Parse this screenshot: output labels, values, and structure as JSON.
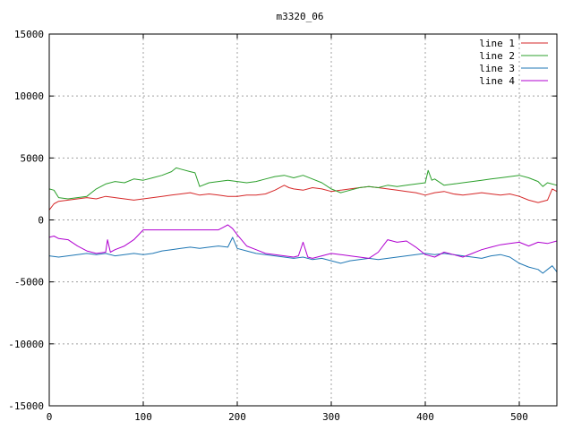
{
  "chart_data": {
    "type": "line",
    "title": "m3320_06",
    "xlabel": "",
    "ylabel": "",
    "xlim": [
      0,
      540
    ],
    "ylim": [
      -15000,
      15000
    ],
    "xticks": [
      0,
      100,
      200,
      300,
      400,
      500
    ],
    "yticks": [
      -15000,
      -10000,
      -5000,
      0,
      5000,
      10000,
      15000
    ],
    "grid": true,
    "legend_position": "top-right",
    "series": [
      {
        "name": "line 1",
        "color": "#d62728",
        "points": [
          [
            0,
            800
          ],
          [
            5,
            1300
          ],
          [
            10,
            1500
          ],
          [
            20,
            1600
          ],
          [
            30,
            1700
          ],
          [
            40,
            1800
          ],
          [
            50,
            1700
          ],
          [
            60,
            1900
          ],
          [
            70,
            1800
          ],
          [
            80,
            1700
          ],
          [
            90,
            1600
          ],
          [
            100,
            1700
          ],
          [
            110,
            1800
          ],
          [
            120,
            1900
          ],
          [
            130,
            2000
          ],
          [
            140,
            2100
          ],
          [
            150,
            2200
          ],
          [
            160,
            2000
          ],
          [
            170,
            2100
          ],
          [
            180,
            2000
          ],
          [
            190,
            1900
          ],
          [
            200,
            1900
          ],
          [
            210,
            2000
          ],
          [
            220,
            2000
          ],
          [
            230,
            2100
          ],
          [
            240,
            2400
          ],
          [
            250,
            2800
          ],
          [
            255,
            2600
          ],
          [
            260,
            2500
          ],
          [
            270,
            2400
          ],
          [
            280,
            2600
          ],
          [
            290,
            2500
          ],
          [
            300,
            2300
          ],
          [
            310,
            2400
          ],
          [
            320,
            2500
          ],
          [
            330,
            2600
          ],
          [
            340,
            2700
          ],
          [
            350,
            2600
          ],
          [
            360,
            2500
          ],
          [
            370,
            2400
          ],
          [
            380,
            2300
          ],
          [
            390,
            2200
          ],
          [
            400,
            2000
          ],
          [
            410,
            2200
          ],
          [
            420,
            2300
          ],
          [
            430,
            2100
          ],
          [
            440,
            2000
          ],
          [
            450,
            2100
          ],
          [
            460,
            2200
          ],
          [
            470,
            2100
          ],
          [
            480,
            2000
          ],
          [
            490,
            2100
          ],
          [
            500,
            1900
          ],
          [
            510,
            1600
          ],
          [
            520,
            1400
          ],
          [
            530,
            1600
          ],
          [
            535,
            2500
          ],
          [
            540,
            2300
          ]
        ]
      },
      {
        "name": "line 2",
        "color": "#2ca02c",
        "points": [
          [
            0,
            2500
          ],
          [
            5,
            2400
          ],
          [
            10,
            1800
          ],
          [
            20,
            1700
          ],
          [
            30,
            1800
          ],
          [
            40,
            1900
          ],
          [
            50,
            2500
          ],
          [
            60,
            2900
          ],
          [
            70,
            3100
          ],
          [
            80,
            3000
          ],
          [
            90,
            3300
          ],
          [
            100,
            3200
          ],
          [
            110,
            3400
          ],
          [
            120,
            3600
          ],
          [
            130,
            3900
          ],
          [
            135,
            4200
          ],
          [
            140,
            4100
          ],
          [
            150,
            3900
          ],
          [
            155,
            3800
          ],
          [
            160,
            2700
          ],
          [
            170,
            3000
          ],
          [
            180,
            3100
          ],
          [
            190,
            3200
          ],
          [
            200,
            3100
          ],
          [
            210,
            3000
          ],
          [
            220,
            3100
          ],
          [
            230,
            3300
          ],
          [
            240,
            3500
          ],
          [
            250,
            3600
          ],
          [
            260,
            3400
          ],
          [
            270,
            3600
          ],
          [
            280,
            3300
          ],
          [
            290,
            3000
          ],
          [
            300,
            2500
          ],
          [
            310,
            2200
          ],
          [
            320,
            2400
          ],
          [
            330,
            2600
          ],
          [
            340,
            2700
          ],
          [
            350,
            2600
          ],
          [
            360,
            2800
          ],
          [
            370,
            2700
          ],
          [
            380,
            2800
          ],
          [
            390,
            2900
          ],
          [
            400,
            3000
          ],
          [
            403,
            4000
          ],
          [
            407,
            3200
          ],
          [
            410,
            3300
          ],
          [
            420,
            2800
          ],
          [
            430,
            2900
          ],
          [
            440,
            3000
          ],
          [
            450,
            3100
          ],
          [
            460,
            3200
          ],
          [
            470,
            3300
          ],
          [
            480,
            3400
          ],
          [
            490,
            3500
          ],
          [
            500,
            3600
          ],
          [
            510,
            3400
          ],
          [
            520,
            3100
          ],
          [
            525,
            2700
          ],
          [
            530,
            3000
          ],
          [
            540,
            2800
          ]
        ]
      },
      {
        "name": "line 3",
        "color": "#1f77b4",
        "points": [
          [
            0,
            -2900
          ],
          [
            10,
            -3000
          ],
          [
            20,
            -2900
          ],
          [
            30,
            -2800
          ],
          [
            40,
            -2700
          ],
          [
            50,
            -2800
          ],
          [
            60,
            -2700
          ],
          [
            70,
            -2900
          ],
          [
            80,
            -2800
          ],
          [
            90,
            -2700
          ],
          [
            100,
            -2800
          ],
          [
            110,
            -2700
          ],
          [
            120,
            -2500
          ],
          [
            130,
            -2400
          ],
          [
            140,
            -2300
          ],
          [
            150,
            -2200
          ],
          [
            160,
            -2300
          ],
          [
            170,
            -2200
          ],
          [
            180,
            -2100
          ],
          [
            190,
            -2200
          ],
          [
            195,
            -1400
          ],
          [
            200,
            -2300
          ],
          [
            210,
            -2500
          ],
          [
            220,
            -2700
          ],
          [
            230,
            -2800
          ],
          [
            240,
            -2900
          ],
          [
            250,
            -3000
          ],
          [
            260,
            -3100
          ],
          [
            270,
            -3000
          ],
          [
            280,
            -3200
          ],
          [
            290,
            -3100
          ],
          [
            300,
            -3300
          ],
          [
            310,
            -3500
          ],
          [
            320,
            -3300
          ],
          [
            330,
            -3200
          ],
          [
            340,
            -3100
          ],
          [
            350,
            -3200
          ],
          [
            360,
            -3100
          ],
          [
            370,
            -3000
          ],
          [
            380,
            -2900
          ],
          [
            390,
            -2800
          ],
          [
            400,
            -2700
          ],
          [
            410,
            -2800
          ],
          [
            420,
            -2700
          ],
          [
            430,
            -2800
          ],
          [
            440,
            -2900
          ],
          [
            450,
            -3000
          ],
          [
            460,
            -3100
          ],
          [
            470,
            -2900
          ],
          [
            480,
            -2800
          ],
          [
            490,
            -3000
          ],
          [
            500,
            -3500
          ],
          [
            510,
            -3800
          ],
          [
            520,
            -4000
          ],
          [
            525,
            -4300
          ],
          [
            530,
            -4000
          ],
          [
            535,
            -3700
          ],
          [
            540,
            -4200
          ]
        ]
      },
      {
        "name": "line 4",
        "color": "#b000d0",
        "points": [
          [
            0,
            -1400
          ],
          [
            5,
            -1300
          ],
          [
            10,
            -1500
          ],
          [
            20,
            -1600
          ],
          [
            30,
            -2100
          ],
          [
            40,
            -2500
          ],
          [
            50,
            -2700
          ],
          [
            60,
            -2600
          ],
          [
            62,
            -1600
          ],
          [
            65,
            -2600
          ],
          [
            70,
            -2400
          ],
          [
            80,
            -2100
          ],
          [
            90,
            -1600
          ],
          [
            100,
            -800
          ],
          [
            110,
            -800
          ],
          [
            120,
            -800
          ],
          [
            130,
            -800
          ],
          [
            140,
            -800
          ],
          [
            150,
            -800
          ],
          [
            160,
            -800
          ],
          [
            170,
            -800
          ],
          [
            180,
            -800
          ],
          [
            185,
            -600
          ],
          [
            190,
            -400
          ],
          [
            195,
            -700
          ],
          [
            200,
            -1200
          ],
          [
            210,
            -2100
          ],
          [
            220,
            -2400
          ],
          [
            230,
            -2700
          ],
          [
            240,
            -2800
          ],
          [
            250,
            -2900
          ],
          [
            260,
            -3000
          ],
          [
            265,
            -2900
          ],
          [
            270,
            -1800
          ],
          [
            275,
            -3000
          ],
          [
            280,
            -3100
          ],
          [
            290,
            -2900
          ],
          [
            300,
            -2700
          ],
          [
            310,
            -2800
          ],
          [
            320,
            -2900
          ],
          [
            330,
            -3000
          ],
          [
            340,
            -3100
          ],
          [
            350,
            -2600
          ],
          [
            360,
            -1600
          ],
          [
            370,
            -1800
          ],
          [
            380,
            -1700
          ],
          [
            390,
            -2200
          ],
          [
            400,
            -2800
          ],
          [
            410,
            -3000
          ],
          [
            420,
            -2600
          ],
          [
            430,
            -2800
          ],
          [
            440,
            -3000
          ],
          [
            450,
            -2700
          ],
          [
            460,
            -2400
          ],
          [
            470,
            -2200
          ],
          [
            480,
            -2000
          ],
          [
            490,
            -1900
          ],
          [
            500,
            -1800
          ],
          [
            510,
            -2100
          ],
          [
            520,
            -1800
          ],
          [
            530,
            -1900
          ],
          [
            540,
            -1700
          ]
        ]
      }
    ]
  }
}
